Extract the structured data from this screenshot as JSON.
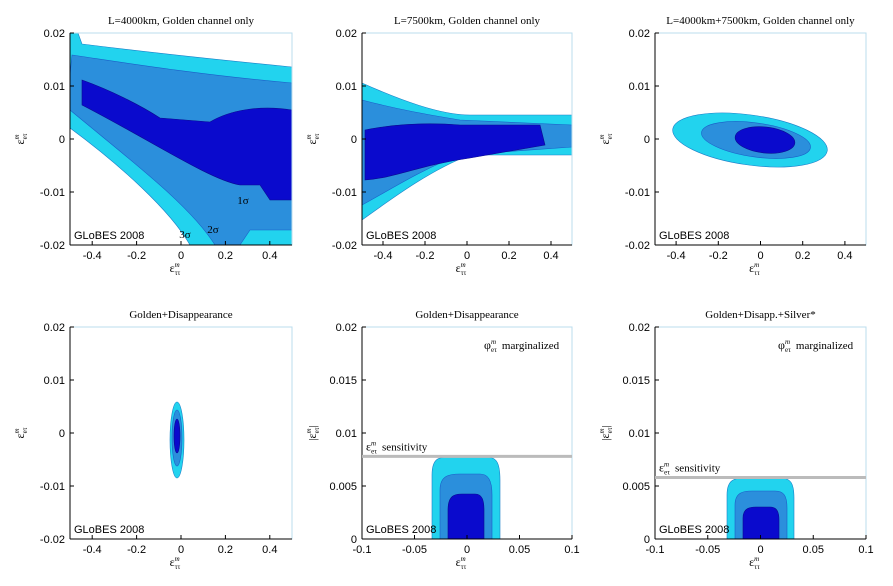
{
  "chart_data": [
    {
      "type": "contour",
      "title": "L=4000km, Golden channel only",
      "xlabel": {
        "base": "ε",
        "sup": "m",
        "sub": "ττ"
      },
      "ylabel": {
        "base": "ε",
        "sup": "m",
        "sub": "eτ"
      },
      "xlim": [
        -0.5,
        0.5
      ],
      "ylim": [
        -0.02,
        0.02
      ],
      "xticks": [
        -0.4,
        -0.2,
        0,
        0.2,
        0.4
      ],
      "yticks": [
        -0.02,
        -0.01,
        0,
        0.01,
        0.02
      ],
      "watermark": "GLoBES 2008",
      "sigma_labels": [
        "1σ",
        "2σ",
        "3σ"
      ]
    },
    {
      "type": "contour",
      "title": "L=7500km, Golden channel only",
      "xlabel": {
        "base": "ε",
        "sup": "m",
        "sub": "ττ"
      },
      "ylabel": {
        "base": "ε",
        "sup": "m",
        "sub": "eτ"
      },
      "xlim": [
        -0.5,
        0.5
      ],
      "ylim": [
        -0.02,
        0.02
      ],
      "xticks": [
        -0.4,
        -0.2,
        0,
        0.2,
        0.4
      ],
      "yticks": [
        -0.02,
        -0.01,
        0,
        0.01,
        0.02
      ],
      "watermark": "GLoBES 2008"
    },
    {
      "type": "contour",
      "title": "L=4000km+7500km, Golden channel only",
      "xlabel": {
        "base": "ε",
        "sup": "m",
        "sub": "ττ"
      },
      "ylabel": {
        "base": "ε",
        "sup": "m",
        "sub": "eτ"
      },
      "xlim": [
        -0.5,
        0.5
      ],
      "ylim": [
        -0.02,
        0.02
      ],
      "xticks": [
        -0.4,
        -0.2,
        0,
        0.2,
        0.4
      ],
      "yticks": [
        -0.02,
        -0.01,
        0,
        0.01,
        0.02
      ],
      "watermark": "GLoBES 2008"
    },
    {
      "type": "contour",
      "title": "Golden+Disappearance",
      "xlabel": {
        "base": "ε",
        "sup": "m",
        "sub": "ττ"
      },
      "ylabel": {
        "base": "ε",
        "sup": "m",
        "sub": "eτ"
      },
      "xlim": [
        -0.5,
        0.5
      ],
      "ylim": [
        -0.02,
        0.02
      ],
      "xticks": [
        -0.4,
        -0.2,
        0,
        0.2,
        0.4
      ],
      "yticks": [
        -0.02,
        -0.01,
        0,
        0.01,
        0.02
      ],
      "watermark": "GLoBES 2008"
    },
    {
      "type": "contour",
      "title": "Golden+Disappearance",
      "xlabel": {
        "base": "ε",
        "sup": "m",
        "sub": "ττ"
      },
      "ylabel": {
        "pre": "|",
        "base": "ε",
        "sup": "m",
        "sub": "eτ",
        "post": "|"
      },
      "xlim": [
        -0.1,
        0.1
      ],
      "ylim": [
        0,
        0.02
      ],
      "xticks": [
        -0.1,
        -0.05,
        0,
        0.05,
        0.1
      ],
      "yticks": [
        0,
        0.005,
        0.01,
        0.015,
        0.02
      ],
      "watermark": "GLoBES 2008",
      "marginalized": {
        "base": "φ",
        "sup": "m",
        "sub": "eτ",
        "text": "marginalized"
      },
      "sensitivity": {
        "value": 0.0078,
        "base": "ε",
        "sup": "m",
        "sub": "eτ",
        "text": "sensitivity"
      }
    },
    {
      "type": "contour",
      "title": "Golden+Disapp.+Silver*",
      "xlabel": {
        "base": "ε",
        "sup": "m",
        "sub": "ττ"
      },
      "ylabel": {
        "pre": "|",
        "base": "ε",
        "sup": "m",
        "sub": "eτ",
        "post": "|"
      },
      "xlim": [
        -0.1,
        0.1
      ],
      "ylim": [
        0,
        0.02
      ],
      "xticks": [
        -0.1,
        -0.05,
        0,
        0.05,
        0.1
      ],
      "yticks": [
        0,
        0.005,
        0.01,
        0.015,
        0.02
      ],
      "watermark": "GLoBES 2008",
      "marginalized": {
        "base": "φ",
        "sup": "m",
        "sub": "eτ",
        "text": "marginalized"
      },
      "sensitivity": {
        "value": 0.0058,
        "base": "ε",
        "sup": "m",
        "sub": "eτ",
        "text": "sensitivity"
      }
    }
  ]
}
